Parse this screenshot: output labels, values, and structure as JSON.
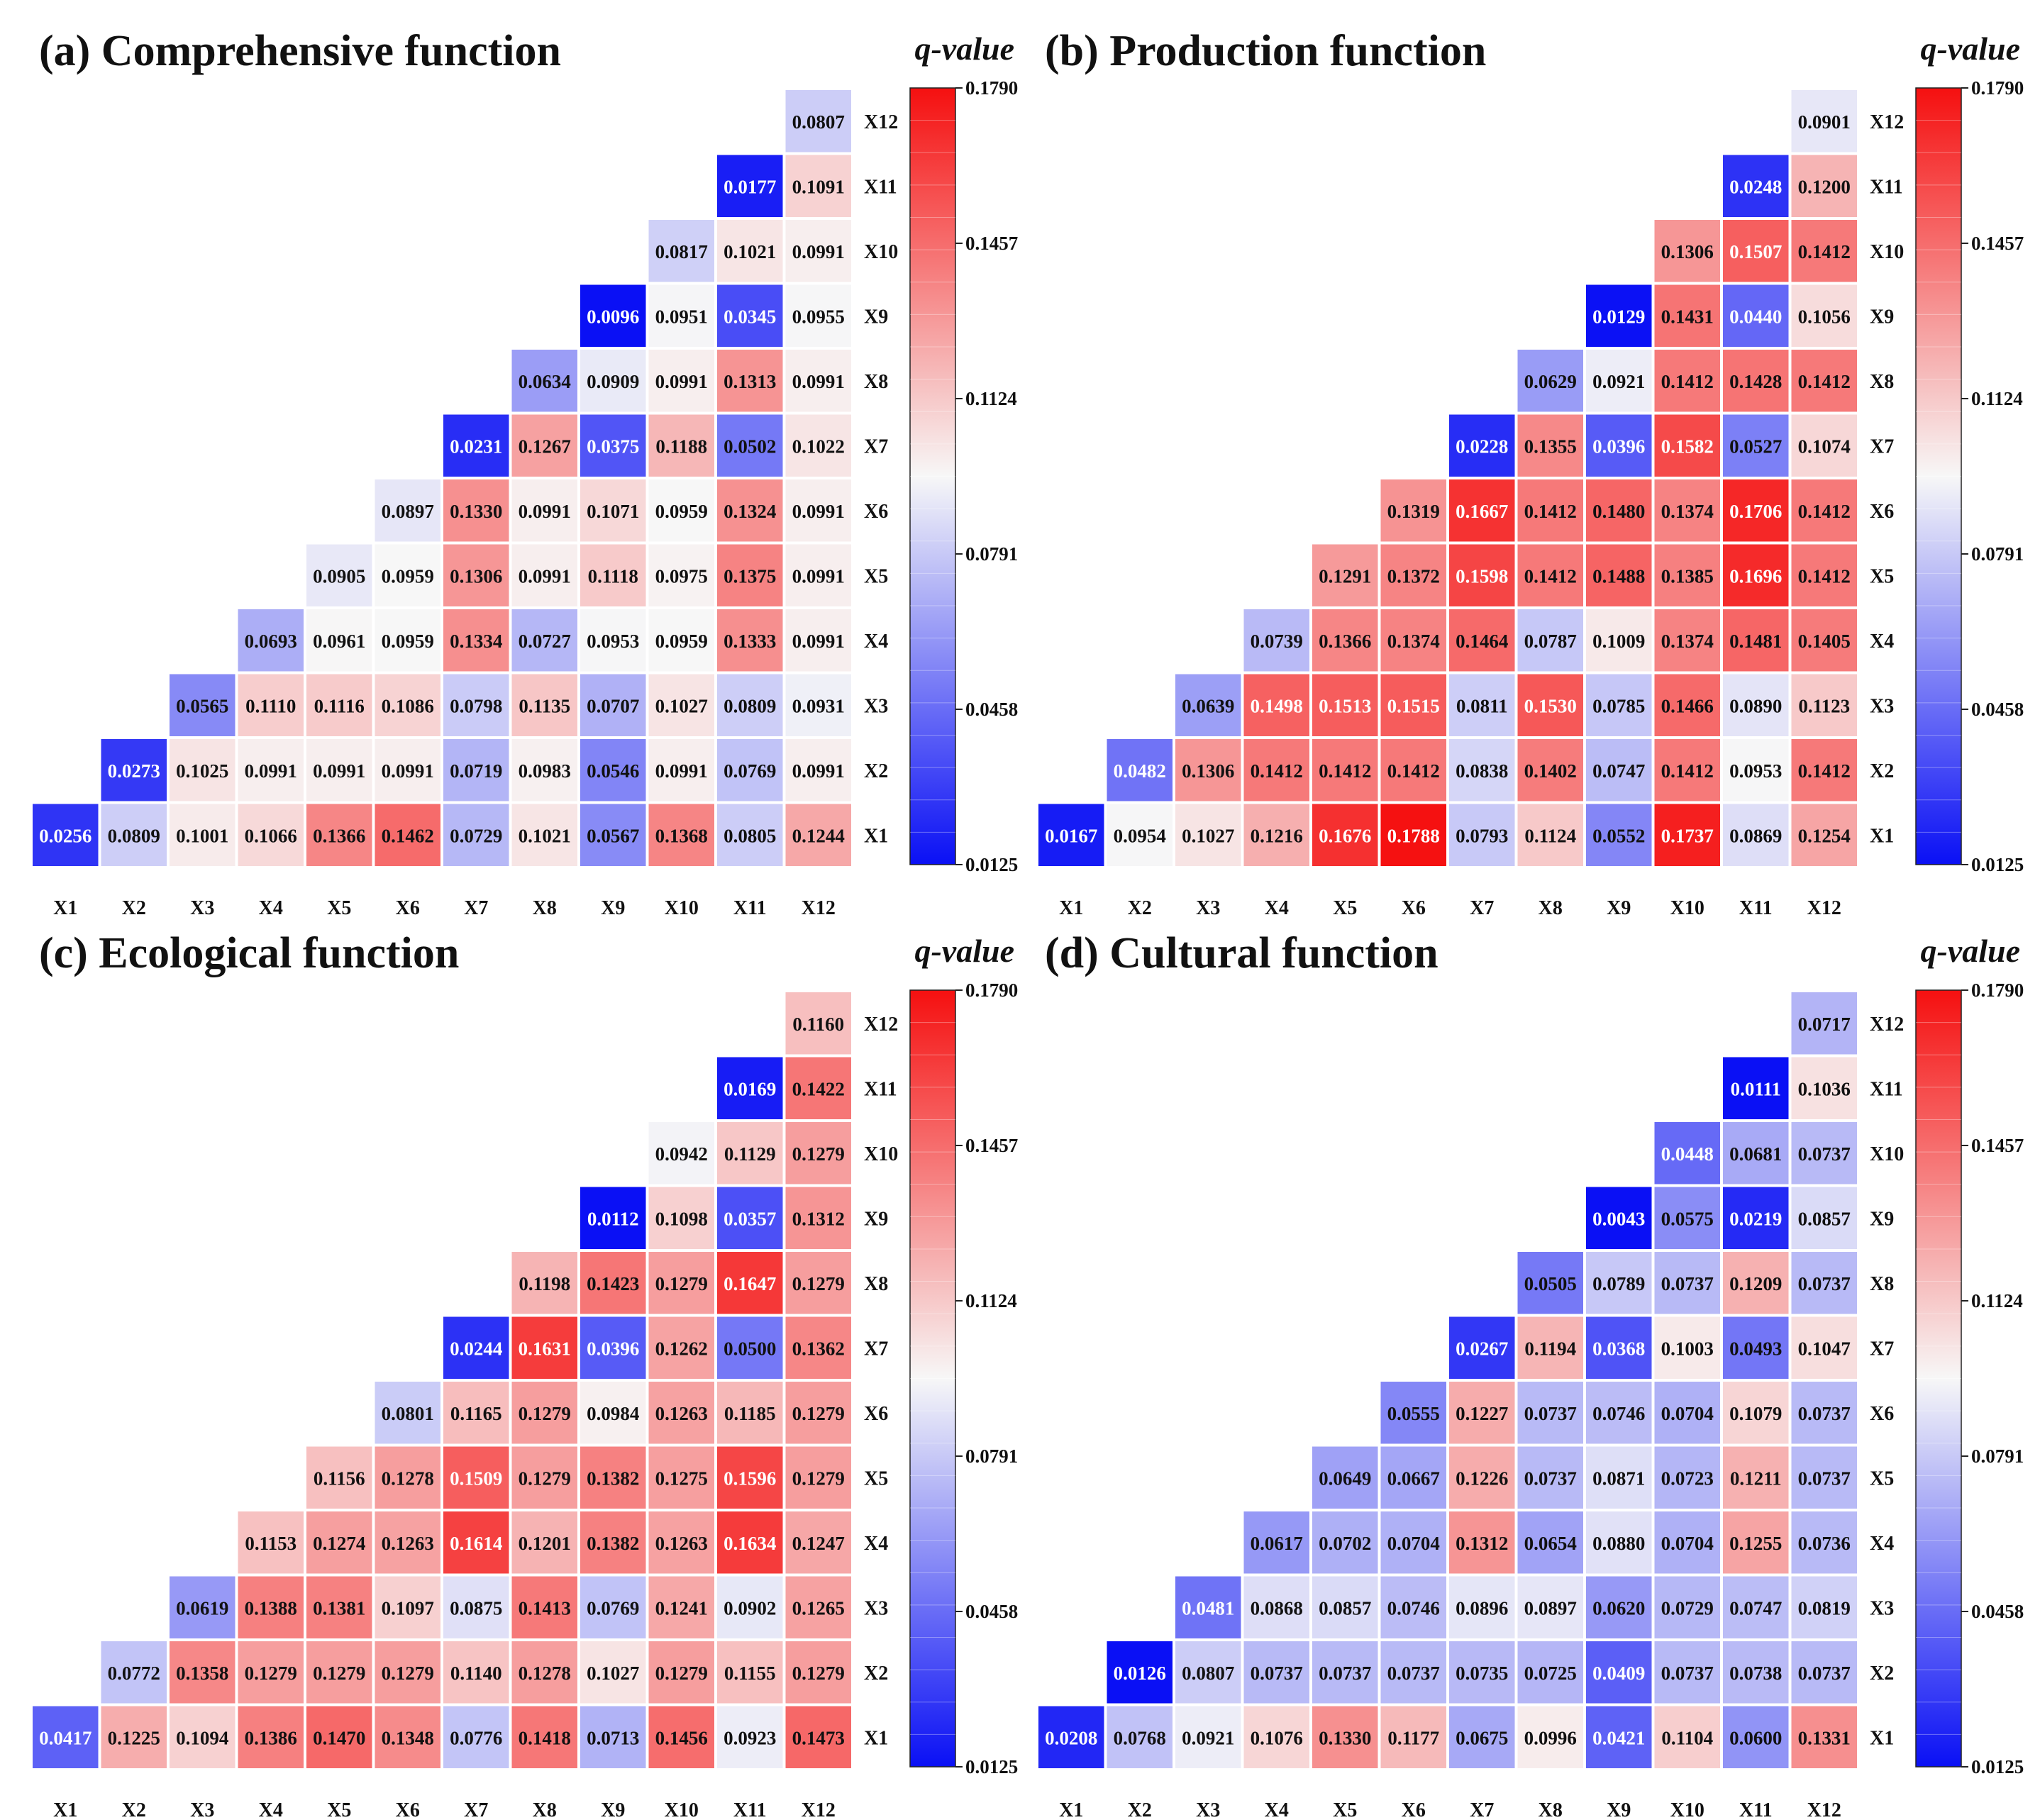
{
  "colorbar": {
    "label": "q-value",
    "min": 0.0125,
    "max": 0.179,
    "ticks": [
      "0.1790",
      "0.1457",
      "0.1124",
      "0.0791",
      "0.0458",
      "0.0125"
    ],
    "colors": {
      "low": "#0a10f5",
      "mid": "#f7f7f7",
      "high": "#f51010"
    }
  },
  "chart_data": [
    {
      "type": "heatmap",
      "title": "(a) Comprehensive function",
      "x_labels": [
        "X1",
        "X2",
        "X3",
        "X4",
        "X5",
        "X6",
        "X7",
        "X8",
        "X9",
        "X10",
        "X11",
        "X12"
      ],
      "y_labels": [
        "X12",
        "X11",
        "X10",
        "X9",
        "X8",
        "X7",
        "X6",
        "X5",
        "X4",
        "X3",
        "X2",
        "X1"
      ],
      "rows": [
        [
          "0.0807"
        ],
        [
          "0.0177",
          "0.1091"
        ],
        [
          "0.0817",
          "0.1021",
          "0.0991"
        ],
        [
          "0.0096",
          "0.0951",
          "0.0345",
          "0.0955"
        ],
        [
          "0.0634",
          "0.0909",
          "0.0991",
          "0.1313",
          "0.0991"
        ],
        [
          "0.0231",
          "0.1267",
          "0.0375",
          "0.1188",
          "0.0502",
          "0.1022"
        ],
        [
          "0.0897",
          "0.1330",
          "0.0991",
          "0.1071",
          "0.0959",
          "0.1324",
          "0.0991"
        ],
        [
          "0.0905",
          "0.0959",
          "0.1306",
          "0.0991",
          "0.1118",
          "0.0975",
          "0.1375",
          "0.0991"
        ],
        [
          "0.0693",
          "0.0961",
          "0.0959",
          "0.1334",
          "0.0727",
          "0.0953",
          "0.0959",
          "0.1333",
          "0.0991"
        ],
        [
          "0.0565",
          "0.1110",
          "0.1116",
          "0.1086",
          "0.0798",
          "0.1135",
          "0.0707",
          "0.1027",
          "0.0809",
          "0.0931"
        ],
        [
          "0.0273",
          "0.1025",
          "0.0991",
          "0.0991",
          "0.0991",
          "0.0719",
          "0.0983",
          "0.0546",
          "0.0991",
          "0.0769",
          "0.0991"
        ],
        [
          "0.0256",
          "0.0809",
          "0.1001",
          "0.1066",
          "0.1366",
          "0.1462",
          "0.0729",
          "0.1021",
          "0.0567",
          "0.1368",
          "0.0805",
          "0.1244"
        ]
      ]
    },
    {
      "type": "heatmap",
      "title": "(b) Production function",
      "x_labels": [
        "X1",
        "X2",
        "X3",
        "X4",
        "X5",
        "X6",
        "X7",
        "X8",
        "X9",
        "X10",
        "X11",
        "X12"
      ],
      "y_labels": [
        "X12",
        "X11",
        "X10",
        "X9",
        "X8",
        "X7",
        "X6",
        "X5",
        "X4",
        "X3",
        "X2",
        "X1"
      ],
      "rows": [
        [
          "0.0901"
        ],
        [
          "0.0248",
          "0.1200"
        ],
        [
          "0.1306",
          "0.1507",
          "0.1412"
        ],
        [
          "0.0129",
          "0.1431",
          "0.0440",
          "0.1056"
        ],
        [
          "0.0629",
          "0.0921",
          "0.1412",
          "0.1428",
          "0.1412"
        ],
        [
          "0.0228",
          "0.1355",
          "0.0396",
          "0.1582",
          "0.0527",
          "0.1074"
        ],
        [
          "0.1319",
          "0.1667",
          "0.1412",
          "0.1480",
          "0.1374",
          "0.1706",
          "0.1412"
        ],
        [
          "0.1291",
          "0.1372",
          "0.1598",
          "0.1412",
          "0.1488",
          "0.1385",
          "0.1696",
          "0.1412"
        ],
        [
          "0.0739",
          "0.1366",
          "0.1374",
          "0.1464",
          "0.0787",
          "0.1009",
          "0.1374",
          "0.1481",
          "0.1405"
        ],
        [
          "0.0639",
          "0.1498",
          "0.1513",
          "0.1515",
          "0.0811",
          "0.1530",
          "0.0785",
          "0.1466",
          "0.0890",
          "0.1123"
        ],
        [
          "0.0482",
          "0.1306",
          "0.1412",
          "0.1412",
          "0.1412",
          "0.0838",
          "0.1402",
          "0.0747",
          "0.1412",
          "0.0953",
          "0.1412"
        ],
        [
          "0.0167",
          "0.0954",
          "0.1027",
          "0.1216",
          "0.1676",
          "0.1788",
          "0.0793",
          "0.1124",
          "0.0552",
          "0.1737",
          "0.0869",
          "0.1254"
        ]
      ]
    },
    {
      "type": "heatmap",
      "title": "(c) Ecological function",
      "x_labels": [
        "X1",
        "X2",
        "X3",
        "X4",
        "X5",
        "X6",
        "X7",
        "X8",
        "X9",
        "X10",
        "X11",
        "X12"
      ],
      "y_labels": [
        "X12",
        "X11",
        "X10",
        "X9",
        "X8",
        "X7",
        "X6",
        "X5",
        "X4",
        "X3",
        "X2",
        "X1"
      ],
      "rows": [
        [
          "0.1160"
        ],
        [
          "0.0169",
          "0.1422"
        ],
        [
          "0.0942",
          "0.1129",
          "0.1279"
        ],
        [
          "0.0112",
          "0.1098",
          "0.0357",
          "0.1312"
        ],
        [
          "0.1198",
          "0.1423",
          "0.1279",
          "0.1647",
          "0.1279"
        ],
        [
          "0.0244",
          "0.1631",
          "0.0396",
          "0.1262",
          "0.0500",
          "0.1362"
        ],
        [
          "0.0801",
          "0.1165",
          "0.1279",
          "0.0984",
          "0.1263",
          "0.1185",
          "0.1279"
        ],
        [
          "0.1156",
          "0.1278",
          "0.1509",
          "0.1279",
          "0.1382",
          "0.1275",
          "0.1596",
          "0.1279"
        ],
        [
          "0.1153",
          "0.1274",
          "0.1263",
          "0.1614",
          "0.1201",
          "0.1382",
          "0.1263",
          "0.1634",
          "0.1247"
        ],
        [
          "0.0619",
          "0.1388",
          "0.1381",
          "0.1097",
          "0.0875",
          "0.1413",
          "0.0769",
          "0.1241",
          "0.0902",
          "0.1265"
        ],
        [
          "0.0772",
          "0.1358",
          "0.1279",
          "0.1279",
          "0.1279",
          "0.1140",
          "0.1278",
          "0.1027",
          "0.1279",
          "0.1155",
          "0.1279"
        ],
        [
          "0.0417",
          "0.1225",
          "0.1094",
          "0.1386",
          "0.1470",
          "0.1348",
          "0.0776",
          "0.1418",
          "0.0713",
          "0.1456",
          "0.0923",
          "0.1473"
        ]
      ]
    },
    {
      "type": "heatmap",
      "title": "(d) Cultural function",
      "x_labels": [
        "X1",
        "X2",
        "X3",
        "X4",
        "X5",
        "X6",
        "X7",
        "X8",
        "X9",
        "X10",
        "X11",
        "X12"
      ],
      "y_labels": [
        "X12",
        "X11",
        "X10",
        "X9",
        "X8",
        "X7",
        "X6",
        "X5",
        "X4",
        "X3",
        "X2",
        "X1"
      ],
      "rows": [
        [
          "0.0717"
        ],
        [
          "0.0111",
          "0.1036"
        ],
        [
          "0.0448",
          "0.0681",
          "0.0737"
        ],
        [
          "0.0043",
          "0.0575",
          "0.0219",
          "0.0857"
        ],
        [
          "0.0505",
          "0.0789",
          "0.0737",
          "0.1209",
          "0.0737"
        ],
        [
          "0.0267",
          "0.1194",
          "0.0368",
          "0.1003",
          "0.0493",
          "0.1047"
        ],
        [
          "0.0555",
          "0.1227",
          "0.0737",
          "0.0746",
          "0.0704",
          "0.1079",
          "0.0737"
        ],
        [
          "0.0649",
          "0.0667",
          "0.1226",
          "0.0737",
          "0.0871",
          "0.0723",
          "0.1211",
          "0.0737"
        ],
        [
          "0.0617",
          "0.0702",
          "0.0704",
          "0.1312",
          "0.0654",
          "0.0880",
          "0.0704",
          "0.1255",
          "0.0736"
        ],
        [
          "0.0481",
          "0.0868",
          "0.0857",
          "0.0746",
          "0.0896",
          "0.0897",
          "0.0620",
          "0.0729",
          "0.0747",
          "0.0819"
        ],
        [
          "0.0126",
          "0.0807",
          "0.0737",
          "0.0737",
          "0.0737",
          "0.0735",
          "0.0725",
          "0.0409",
          "0.0737",
          "0.0738",
          "0.0737"
        ],
        [
          "0.0208",
          "0.0768",
          "0.0921",
          "0.1076",
          "0.1330",
          "0.1177",
          "0.0675",
          "0.0996",
          "0.0421",
          "0.1104",
          "0.0600",
          "0.1331"
        ]
      ]
    }
  ]
}
